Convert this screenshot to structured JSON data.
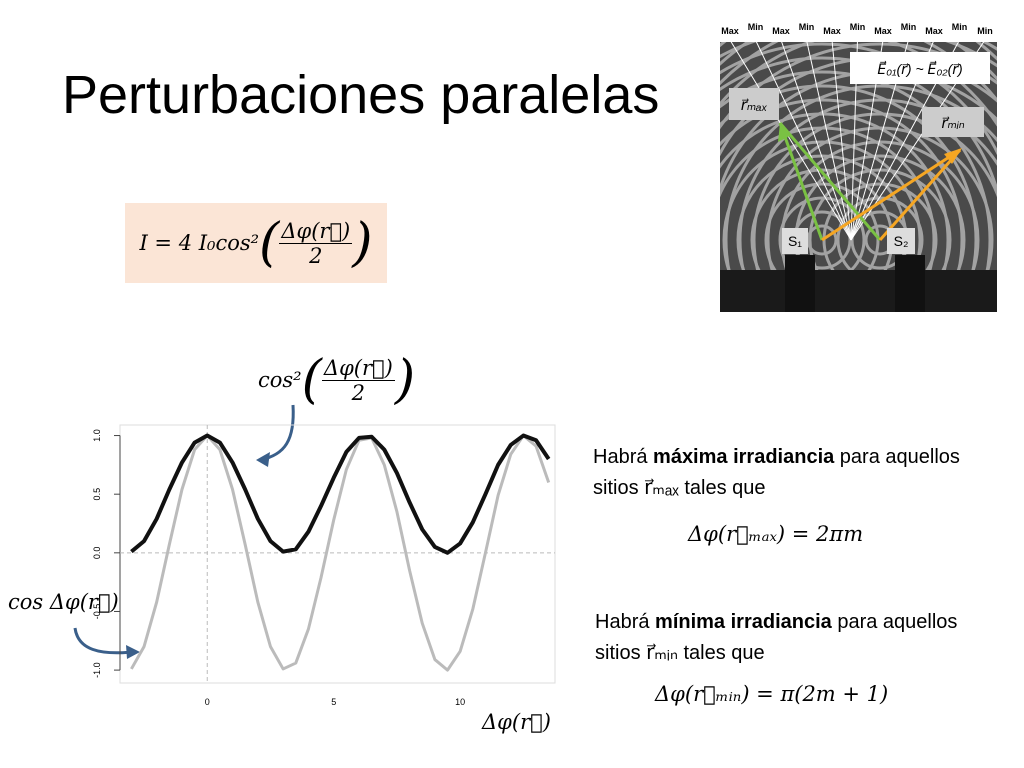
{
  "title": "Perturbaciones paralelas",
  "formula": {
    "lhs": "I = 4 I₀cos²",
    "numerator": "Δφ(r⃗)",
    "denominator": "2"
  },
  "photo": {
    "labels": [
      "Max",
      "Min",
      "Max",
      "Min",
      "Max",
      "Min",
      "Max",
      "Min",
      "Max",
      "Min",
      "Min"
    ],
    "field": "E⃗₀₁(r⃗) ~ E⃗₀₂(r⃗)",
    "r_max": "r⃗ₘₐₓ",
    "r_min": "r⃗ₘᵢₙ",
    "s1": "S₁",
    "s2": "S₂"
  },
  "maximum": {
    "before": "Habrá ",
    "bold": "máxima irradiancia",
    "after": " para aquellos",
    "line2": "sitios r⃗ₘₐₓ tales que",
    "equation": "Δφ(r⃗ₘₐₓ) = 2πm"
  },
  "minimum": {
    "before": "Habrá ",
    "bold": "mínima irradiancia",
    "after": " para aquellos",
    "line2": "sitios r⃗ₘᵢₙ tales que",
    "equation": "Δφ(r⃗ₘᵢₙ) = π(2m + 1)"
  },
  "chart_data": {
    "type": "line",
    "x_label": "Δφ(r⃗)",
    "x": [
      -3,
      -2.5,
      -2,
      -1.5,
      -1,
      -0.5,
      0,
      0.5,
      1,
      1.5,
      2,
      2.5,
      3,
      3.5,
      4,
      4.5,
      5,
      5.5,
      6,
      6.5,
      7,
      7.5,
      8,
      8.5,
      9,
      9.5,
      10,
      10.5,
      11,
      11.5,
      12,
      12.5,
      13,
      13.5
    ],
    "series": [
      {
        "name": "cos²",
        "name_fraction": {
          "numerator": "Δφ(r⃗)",
          "denominator": "2"
        },
        "color": "#111111",
        "values": [
          0.01,
          0.1,
          0.29,
          0.54,
          0.77,
          0.94,
          1,
          0.94,
          0.77,
          0.54,
          0.29,
          0.1,
          0.01,
          0.03,
          0.18,
          0.4,
          0.64,
          0.86,
          0.98,
          0.99,
          0.88,
          0.68,
          0.43,
          0.2,
          0.05,
          0.0,
          0.08,
          0.26,
          0.5,
          0.75,
          0.92,
          1.0,
          0.96,
          0.8
        ]
      },
      {
        "name": "cos Δφ(r⃗)",
        "color": "#bbbbbb",
        "values": [
          -0.99,
          -0.8,
          -0.42,
          0.07,
          0.54,
          0.88,
          1,
          0.88,
          0.54,
          0.07,
          -0.42,
          -0.8,
          -0.99,
          -0.94,
          -0.65,
          -0.21,
          0.28,
          0.71,
          0.96,
          0.98,
          0.75,
          0.35,
          -0.15,
          -0.6,
          -0.91,
          -1.0,
          -0.84,
          -0.48,
          0.0,
          0.49,
          0.84,
          1.0,
          0.91,
          0.6
        ]
      }
    ],
    "xlim": [
      -3.45,
      13.75
    ],
    "ylim": [
      -1.11,
      1.09
    ],
    "xticks": [
      0,
      5,
      10
    ],
    "yticks": [
      {
        "value": -1,
        "label": "-1.0"
      },
      -0.5,
      {
        "value": 0,
        "label": "0.0"
      },
      0.5,
      {
        "value": 1,
        "label": "1.0"
      }
    ],
    "reference_x": [
      0
    ],
    "reference_y": [
      0
    ]
  }
}
